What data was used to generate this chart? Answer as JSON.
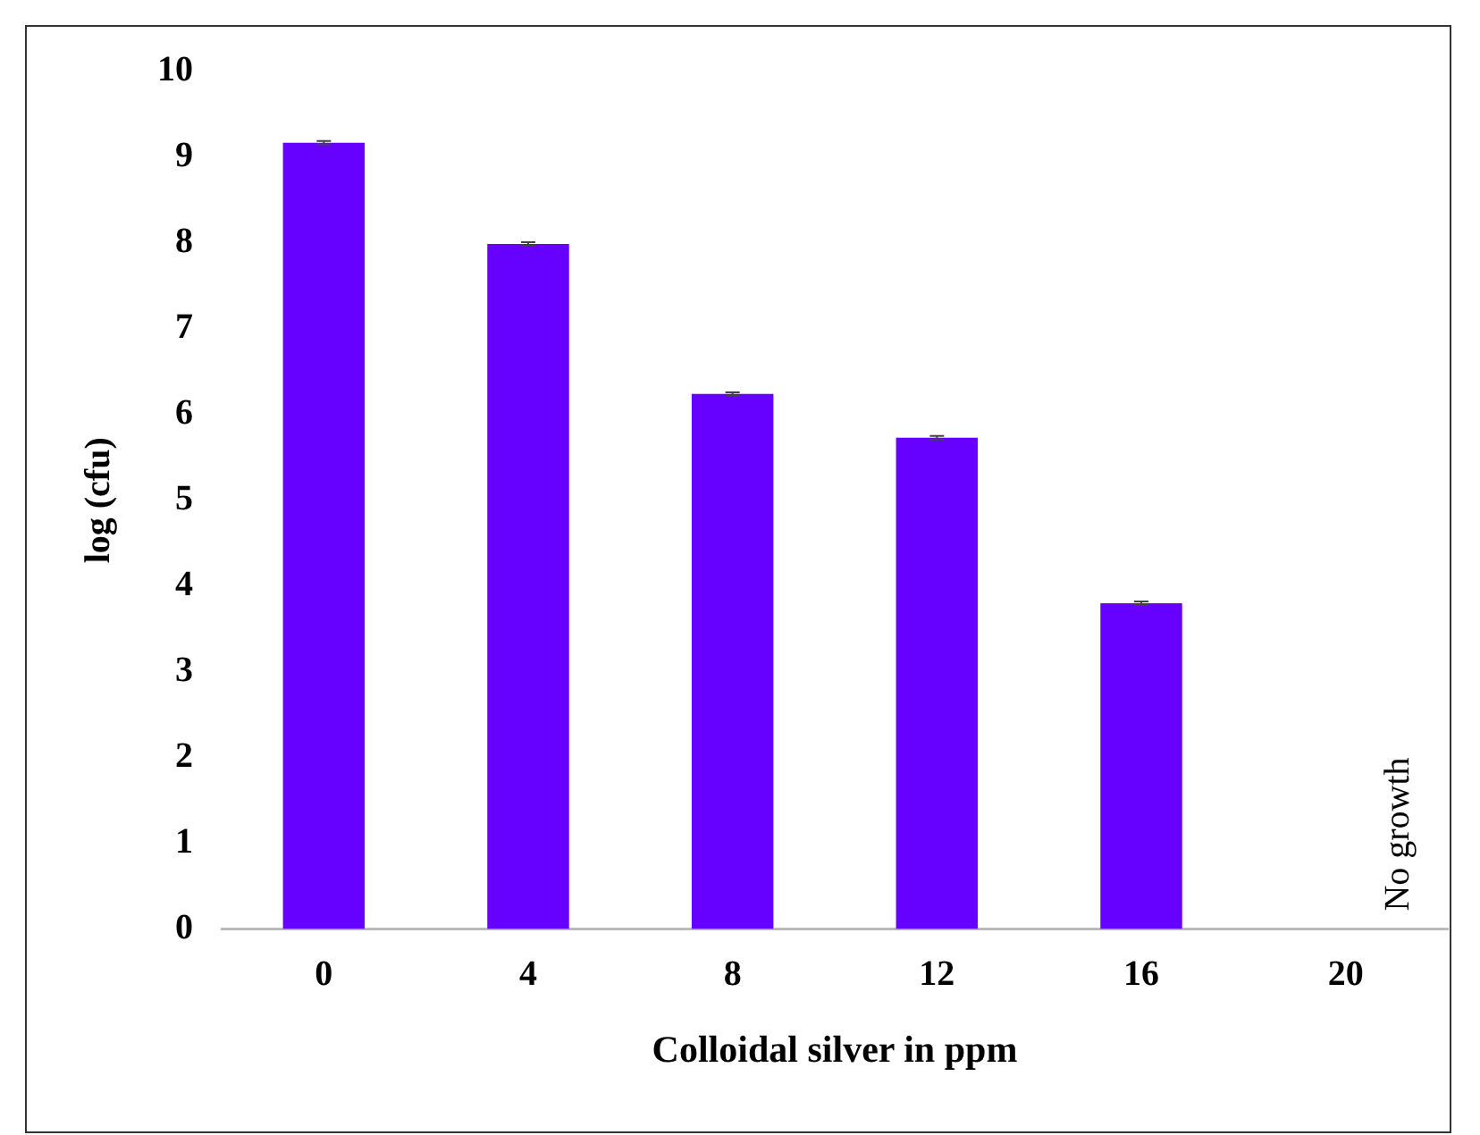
{
  "chart_data": {
    "type": "bar",
    "xlabel": "Colloidal silver in ppm",
    "ylabel": "log (cfu)",
    "categories": [
      "0",
      "4",
      "8",
      "12",
      "16",
      "20"
    ],
    "values": [
      9.17,
      7.99,
      6.24,
      5.73,
      3.8,
      null
    ],
    "errors": [
      0.02,
      0.02,
      0.02,
      0.02,
      0.02,
      null
    ],
    "color": "#6600ff",
    "ylim": [
      0,
      10
    ],
    "yticks": [
      0,
      1,
      2,
      3,
      4,
      5,
      6,
      7,
      8,
      9,
      10
    ],
    "grid": false,
    "legend": false,
    "annotations": [
      "No growth"
    ]
  }
}
